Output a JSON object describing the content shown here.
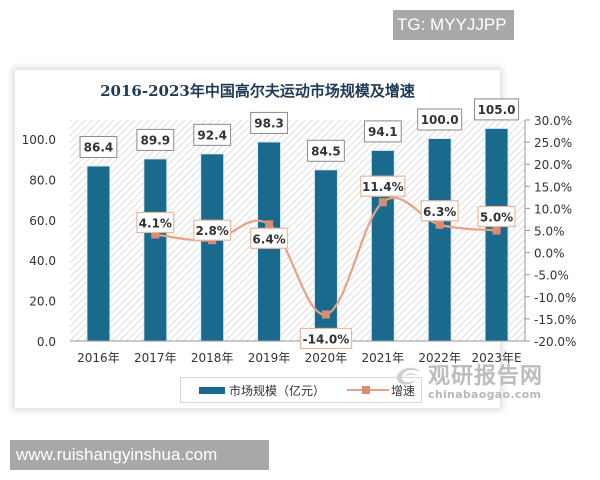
{
  "overlay_tags": {
    "top_right": "TG: MYYJJPP",
    "bottom_left": "www.ruishangyinshua.com"
  },
  "watermark": {
    "name_cn": "观研报告网",
    "domain": "chinabaogao.com"
  },
  "colors": {
    "bar": "#1a6a8e",
    "line": "#e8a184",
    "marker": "#d98e73",
    "title": "#1f3a55",
    "hatch": "#d9d9d9"
  },
  "chart_data": {
    "type": "bar",
    "title": "2016-2023年中国高尔夫运动市场规模及增速",
    "categories": [
      "2016年",
      "2017年",
      "2018年",
      "2019年",
      "2020年",
      "2021年",
      "2022年",
      "2023年E"
    ],
    "series": [
      {
        "name": "市场规模（亿元）",
        "type": "bar",
        "axis": "left",
        "values": [
          86.4,
          89.9,
          92.4,
          98.3,
          84.5,
          94.1,
          100.0,
          105.0
        ],
        "labels": [
          "86.4",
          "89.9",
          "92.4",
          "98.3",
          "84.5",
          "94.1",
          "100.0",
          "105.0"
        ]
      },
      {
        "name": "增速",
        "type": "line",
        "axis": "right",
        "values": [
          null,
          4.1,
          2.8,
          6.4,
          -14.0,
          11.4,
          6.3,
          5.0
        ],
        "labels": [
          "",
          "4.1%",
          "2.8%",
          "6.4%",
          "-14.0%",
          "11.4%",
          "6.3%",
          "5.0%"
        ]
      }
    ],
    "left_axis": {
      "ylim": [
        0,
        100
      ],
      "ticks": [
        "0.0",
        "20.0",
        "40.0",
        "60.0",
        "80.0",
        "100.0"
      ]
    },
    "right_axis": {
      "ylim": [
        -20,
        30
      ],
      "ticks": [
        "30.0%",
        "25.0%",
        "20.0%",
        "15.0%",
        "10.0%",
        "5.0%",
        "0.0%",
        "-5.0%",
        "-10.0%",
        "-15.0%",
        "-20.0%"
      ]
    },
    "xlabel": "",
    "ylabel": "",
    "grid": false,
    "background": "diagonal hatch",
    "legend_position": "bottom",
    "legend": [
      "市场规模（亿元）",
      "增速"
    ]
  }
}
